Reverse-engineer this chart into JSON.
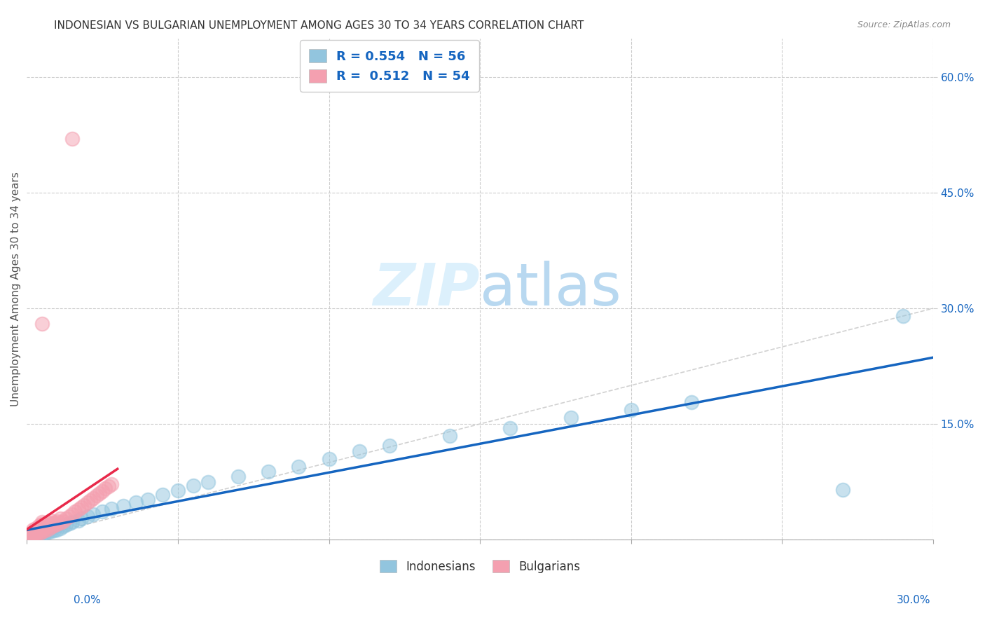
{
  "title": "INDONESIAN VS BULGARIAN UNEMPLOYMENT AMONG AGES 30 TO 34 YEARS CORRELATION CHART",
  "source": "Source: ZipAtlas.com",
  "ylabel": "Unemployment Among Ages 30 to 34 years",
  "xlim": [
    0.0,
    0.3
  ],
  "ylim": [
    0.0,
    0.65
  ],
  "ytick_vals": [
    0.0,
    0.15,
    0.3,
    0.45,
    0.6
  ],
  "ytick_labels": [
    "",
    "15.0%",
    "30.0%",
    "45.0%",
    "60.0%"
  ],
  "xtick_label_left": "0.0%",
  "xtick_label_right": "30.0%",
  "legend_blue_R": "0.554",
  "legend_blue_N": "56",
  "legend_pink_R": "0.512",
  "legend_pink_N": "54",
  "legend_label_blue": "Indonesians",
  "legend_label_pink": "Bulgarians",
  "blue_scatter_color": "#92C5DE",
  "pink_scatter_color": "#F4A0B0",
  "blue_line_color": "#1565C0",
  "pink_line_color": "#E8294A",
  "ref_line_color": "#CCCCCC",
  "text_color": "#1565C0",
  "watermark_color": "#DCF0FC",
  "title_color": "#333333",
  "source_color": "#888888",
  "ylabel_color": "#555555",
  "indo_x": [
    0.001,
    0.001,
    0.002,
    0.002,
    0.002,
    0.003,
    0.003,
    0.003,
    0.004,
    0.004,
    0.004,
    0.005,
    0.005,
    0.005,
    0.006,
    0.006,
    0.006,
    0.007,
    0.007,
    0.008,
    0.008,
    0.009,
    0.009,
    0.01,
    0.01,
    0.011,
    0.012,
    0.013,
    0.014,
    0.015,
    0.017,
    0.018,
    0.02,
    0.022,
    0.025,
    0.028,
    0.032,
    0.036,
    0.04,
    0.045,
    0.05,
    0.055,
    0.06,
    0.07,
    0.08,
    0.09,
    0.1,
    0.11,
    0.12,
    0.14,
    0.16,
    0.18,
    0.2,
    0.22,
    0.27,
    0.29
  ],
  "indo_y": [
    0.002,
    0.005,
    0.003,
    0.006,
    0.008,
    0.004,
    0.007,
    0.01,
    0.005,
    0.008,
    0.012,
    0.006,
    0.01,
    0.014,
    0.008,
    0.011,
    0.015,
    0.01,
    0.013,
    0.011,
    0.015,
    0.012,
    0.016,
    0.013,
    0.018,
    0.015,
    0.017,
    0.019,
    0.021,
    0.023,
    0.025,
    0.027,
    0.03,
    0.033,
    0.036,
    0.04,
    0.044,
    0.048,
    0.052,
    0.058,
    0.064,
    0.07,
    0.075,
    0.082,
    0.088,
    0.095,
    0.105,
    0.115,
    0.122,
    0.135,
    0.145,
    0.158,
    0.168,
    0.178,
    0.065,
    0.29
  ],
  "bulg_x": [
    0.001,
    0.001,
    0.001,
    0.002,
    0.002,
    0.002,
    0.002,
    0.003,
    0.003,
    0.003,
    0.003,
    0.004,
    0.004,
    0.004,
    0.004,
    0.005,
    0.005,
    0.005,
    0.005,
    0.005,
    0.006,
    0.006,
    0.006,
    0.007,
    0.007,
    0.007,
    0.008,
    0.008,
    0.008,
    0.009,
    0.009,
    0.01,
    0.01,
    0.011,
    0.011,
    0.012,
    0.013,
    0.014,
    0.015,
    0.016,
    0.017,
    0.018,
    0.019,
    0.02,
    0.021,
    0.022,
    0.023,
    0.024,
    0.025,
    0.026,
    0.027,
    0.028,
    0.015,
    0.005
  ],
  "bulg_y": [
    0.002,
    0.005,
    0.008,
    0.004,
    0.007,
    0.01,
    0.013,
    0.006,
    0.009,
    0.012,
    0.015,
    0.008,
    0.011,
    0.015,
    0.018,
    0.01,
    0.013,
    0.017,
    0.02,
    0.023,
    0.012,
    0.016,
    0.02,
    0.014,
    0.018,
    0.022,
    0.016,
    0.02,
    0.025,
    0.018,
    0.022,
    0.02,
    0.024,
    0.022,
    0.027,
    0.024,
    0.027,
    0.03,
    0.033,
    0.036,
    0.039,
    0.042,
    0.045,
    0.048,
    0.051,
    0.054,
    0.057,
    0.06,
    0.063,
    0.066,
    0.069,
    0.072,
    0.52,
    0.28
  ]
}
